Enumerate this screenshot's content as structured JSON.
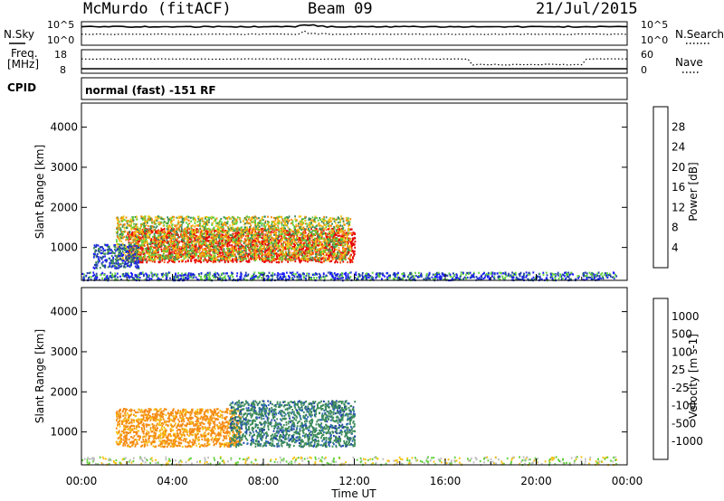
{
  "header": {
    "station": "McMurdo (fitACF)",
    "beam": "Beam 09",
    "date": "21/Jul/2015"
  },
  "top_panels": {
    "nsky_label": "N.Sky",
    "nsky_ticks": [
      "10^5",
      "10^0"
    ],
    "nsearch_label": "N.Search",
    "nsearch_ticks": [
      "10^5",
      "10^0"
    ],
    "freq_label_1": "Freq.",
    "freq_label_2": "[MHz]",
    "freq_ticks": [
      "18",
      "8"
    ],
    "nave_label": "Nave",
    "nave_ticks": [
      "60",
      "0"
    ],
    "cpid_label": "CPID",
    "cpid_text": "normal (fast) -151 RF"
  },
  "axes": {
    "ylabel": "Slant Range [km]",
    "xlabel": "Time UT",
    "y_ticks": [
      "1000",
      "2000",
      "3000",
      "4000"
    ],
    "x_ticks": [
      "00:00",
      "04:00",
      "08:00",
      "12:00",
      "16:00",
      "20:00",
      "00:00"
    ]
  },
  "power_bar": {
    "label": "Power [dB]",
    "ticks": [
      "4",
      "8",
      "12",
      "16",
      "20",
      "24",
      "28"
    ],
    "colors": [
      "#1a1aff",
      "#1f3ea8",
      "#3d8c5a",
      "#5fd13a",
      "#f5c316",
      "#f58a10",
      "#f54a0a",
      "#e60000"
    ]
  },
  "velocity_bar": {
    "label": "Velocity [m s-1]",
    "ticks": [
      "1000",
      "500",
      "100",
      "25",
      "-25",
      "-100",
      "-500",
      "-1000"
    ],
    "colors": [
      "#1f3ea8",
      "#2f6cb5",
      "#3d8c5a",
      "#5fd13a",
      "#bdbdbd",
      "#f5c316",
      "#f58a10",
      "#f54a0a",
      "#e60000"
    ]
  },
  "chart_data": {
    "type": "heatmap",
    "x_range_hours": [
      0,
      24
    ],
    "y_range_km": [
      180,
      4600
    ],
    "power_regions": [
      {
        "t0": 2.0,
        "t1": 12.0,
        "r0": 650,
        "r1": 1500,
        "level": "high"
      },
      {
        "t0": 1.5,
        "t1": 11.8,
        "r0": 700,
        "r1": 1800,
        "level": "mid"
      },
      {
        "t0": 0.5,
        "t1": 2.5,
        "r0": 500,
        "r1": 1100,
        "level": "low"
      },
      {
        "t0": 0.0,
        "t1": 23.5,
        "r0": 200,
        "r1": 400,
        "level": "sparse"
      }
    ],
    "velocity_regions": [
      {
        "t0": 1.5,
        "t1": 7.0,
        "r0": 650,
        "r1": 1600,
        "value": "-100 to -500"
      },
      {
        "t0": 6.5,
        "t1": 12.0,
        "r0": 650,
        "r1": 1800,
        "value": "100 to 500"
      }
    ]
  }
}
